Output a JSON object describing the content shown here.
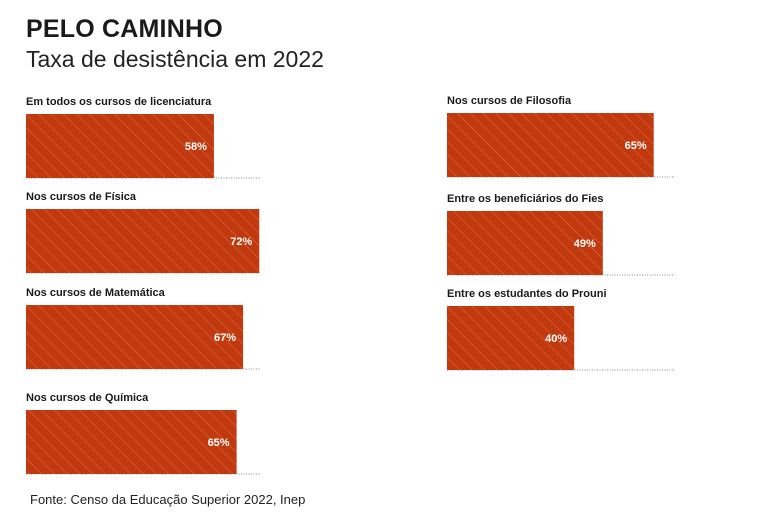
{
  "title": "PELO CAMINHO",
  "subtitle": "Taxa de desistência em 2022",
  "source": "Fonte: Censo da Educação Superior 2022, Inep",
  "colors": {
    "bar": "#c0390f",
    "hatch": "#e0633c",
    "baseline": "#888888"
  },
  "chart_data": {
    "type": "bar",
    "orientation": "horizontal",
    "title": "PELO CAMINHO",
    "subtitle": "Taxa de desistência em 2022",
    "unit": "%",
    "xlim": [
      0,
      100
    ],
    "panels": [
      {
        "position": "left",
        "categories": [
          "Em todos os cursos de licenciatura",
          "Nos cursos de Física",
          "Nos cursos de Matemática",
          "Nos cursos de Química"
        ],
        "values": [
          58,
          72,
          67,
          65
        ],
        "value_labels": [
          "58%",
          "72%",
          "67%",
          "65%"
        ]
      },
      {
        "position": "right",
        "categories": [
          "Nos cursos de Filosofia",
          "Entre os beneficiários do Fies",
          "Entre os estudantes do Prouni"
        ],
        "values": [
          65,
          49,
          40
        ],
        "value_labels": [
          "65%",
          "49%",
          "40%"
        ]
      }
    ]
  }
}
